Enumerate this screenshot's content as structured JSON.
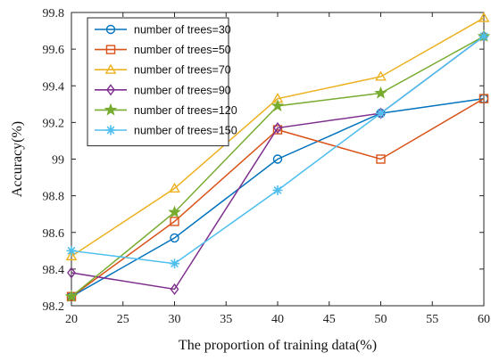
{
  "chart_data": {
    "type": "line",
    "xlabel": "The proportion of training data(%)",
    "ylabel": "Accuracy(%)",
    "xlim": [
      20,
      60
    ],
    "ylim": [
      98.2,
      99.8
    ],
    "x_ticks": [
      "20",
      "25",
      "30",
      "35",
      "40",
      "45",
      "50",
      "55",
      "60"
    ],
    "y_ticks": [
      "98.2",
      "98.4",
      "98.6",
      "98.8",
      "99",
      "99.2",
      "99.4",
      "99.6",
      "99.8"
    ],
    "grid": false,
    "legend_position": "top-left",
    "x": [
      20,
      30,
      40,
      50,
      60
    ],
    "series": [
      {
        "name": "number of trees=30",
        "color": "#0072BD",
        "marker": "circle",
        "values": [
          98.25,
          98.57,
          99.0,
          99.25,
          99.33
        ]
      },
      {
        "name": "number of trees=50",
        "color": "#D95319",
        "marker": "square",
        "values": [
          98.25,
          98.66,
          99.16,
          99.0,
          99.33
        ]
      },
      {
        "name": "number of trees=70",
        "color": "#EDB120",
        "marker": "triangle",
        "values": [
          98.47,
          98.84,
          99.33,
          99.45,
          99.77
        ]
      },
      {
        "name": "number of trees=90",
        "color": "#7E2F8E",
        "marker": "diamond",
        "values": [
          98.38,
          98.29,
          99.17,
          99.25,
          99.67
        ]
      },
      {
        "name": "number of trees=120",
        "color": "#77AC30",
        "marker": "star",
        "values": [
          98.25,
          98.71,
          99.29,
          99.36,
          99.67
        ]
      },
      {
        "name": "number of trees=150",
        "color": "#4DBEEE",
        "marker": "asterisk",
        "values": [
          98.5,
          98.43,
          98.83,
          99.25,
          99.67
        ]
      }
    ]
  }
}
